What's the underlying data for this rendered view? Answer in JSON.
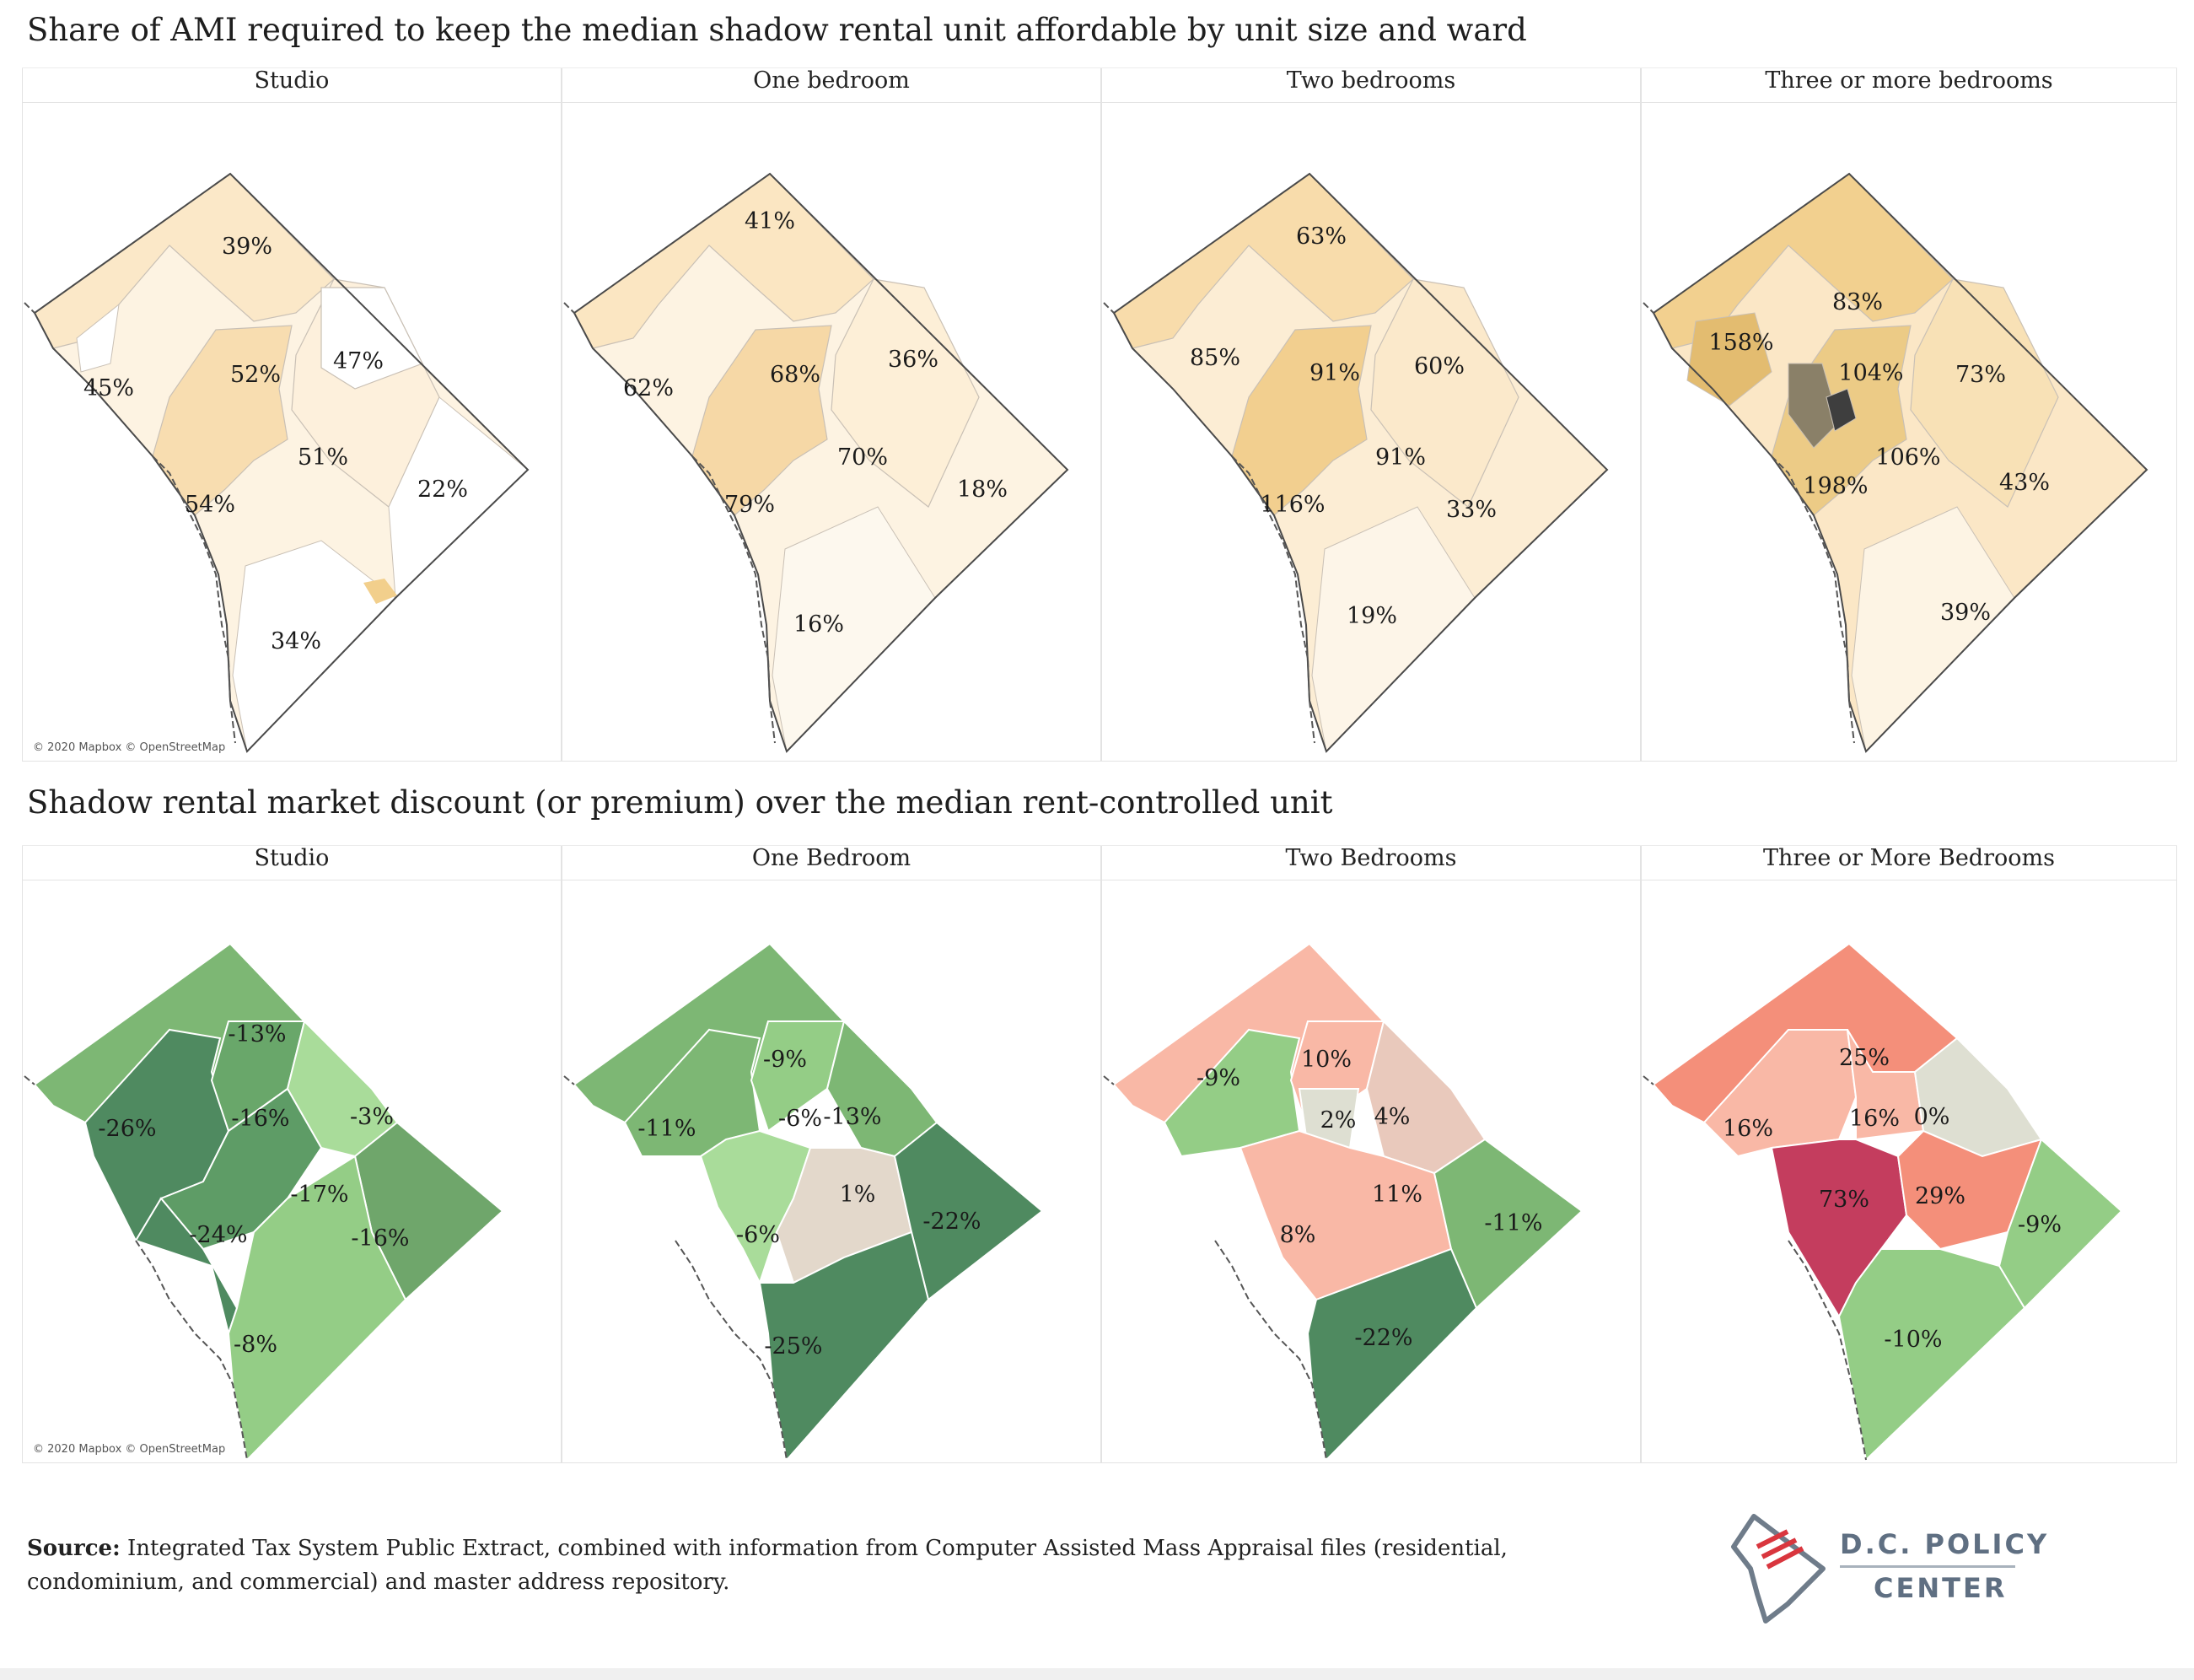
{
  "top_section": {
    "title": "Share of AMI required to keep the median shadow rental unit affordable by unit size and ward",
    "panels": [
      {
        "header": "Studio",
        "labels": [
          "39%",
          "45%",
          "52%",
          "47%",
          "51%",
          "54%",
          "22%",
          "34%"
        ]
      },
      {
        "header": "One bedroom",
        "labels": [
          "41%",
          "62%",
          "68%",
          "36%",
          "70%",
          "79%",
          "18%",
          "16%"
        ]
      },
      {
        "header": "Two bedrooms",
        "labels": [
          "63%",
          "85%",
          "91%",
          "60%",
          "91%",
          "116%",
          "33%",
          "19%"
        ]
      },
      {
        "header": "Three or more bedrooms",
        "labels": [
          "83%",
          "158%",
          "104%",
          "73%",
          "106%",
          "198%",
          "43%",
          "39%"
        ]
      }
    ],
    "credit": "© 2020 Mapbox © OpenStreetMap"
  },
  "bottom_section": {
    "title": "Shadow rental market discount (or premium) over the median rent-controlled unit",
    "panels": [
      {
        "header": "Studio",
        "labels": [
          "-13%",
          "-26%",
          "-16%",
          "-3%",
          "-17%",
          "-24%",
          "-16%",
          "-8%"
        ]
      },
      {
        "header": "One Bedroom",
        "labels": [
          "-9%",
          "-11%",
          "-6%",
          "-13%",
          "1%",
          "-6%",
          "-22%",
          "-25%"
        ]
      },
      {
        "header": "Two Bedrooms",
        "labels": [
          "10%",
          "-9%",
          "2%",
          "4%",
          "11%",
          "8%",
          "-11%",
          "-22%"
        ]
      },
      {
        "header": "Three or More Bedrooms",
        "labels": [
          "25%",
          "16%",
          "16%",
          "0%",
          "73%",
          "29%",
          "-9%",
          "-10%"
        ]
      }
    ],
    "credit": "© 2020 Mapbox © OpenStreetMap"
  },
  "source": {
    "label": "Source:",
    "text": " Integrated Tax System Public Extract, combined with information from Computer Assisted Mass Appraisal files (residential, condominium, and commercial) and master address repository."
  },
  "logo": {
    "line1": "D.C. POLICY",
    "line2": "CENTER"
  },
  "colors": {
    "ami_scale": [
      "#fdf5e6",
      "#fbe8c4",
      "#f6d79c",
      "#e9c078",
      "#7a7060",
      "#3c3c3c"
    ],
    "diverging_negative": [
      "#a9dc9a",
      "#94cd86",
      "#7db774",
      "#69a76a",
      "#4f8a60"
    ],
    "diverging_neutral": [
      "#dedfd2",
      "#e3d8cb",
      "#e9c9bc"
    ],
    "diverging_positive": [
      "#f9b8a6",
      "#f48f7a",
      "#c43d5e"
    ]
  }
}
